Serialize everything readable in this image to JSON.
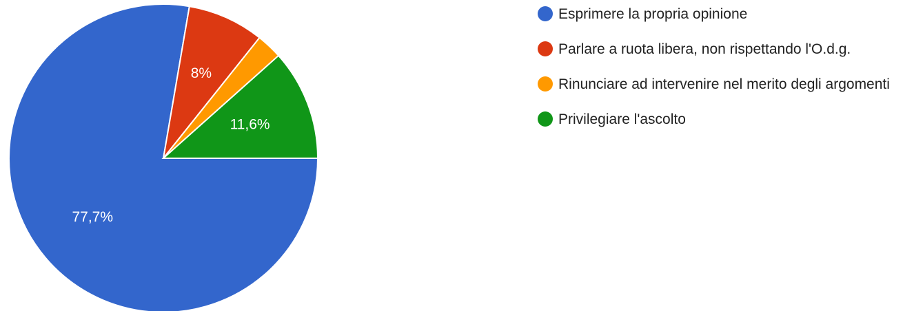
{
  "chart_data": {
    "type": "pie",
    "categories": [
      "Esprimere la propria opinione",
      "Parlare a ruota libera, non rispettando l'O.d.g.",
      "Rinunciare ad intervenire nel merito degli argomenti",
      "Privilegiare l'ascolto"
    ],
    "values": [
      77.7,
      8,
      2.7,
      11.6
    ],
    "value_labels": [
      "77,7%",
      "8%",
      null,
      "11,6%"
    ],
    "colors": [
      "#3366cc",
      "#dc3912",
      "#ff9900",
      "#109618"
    ],
    "legend": "right"
  }
}
